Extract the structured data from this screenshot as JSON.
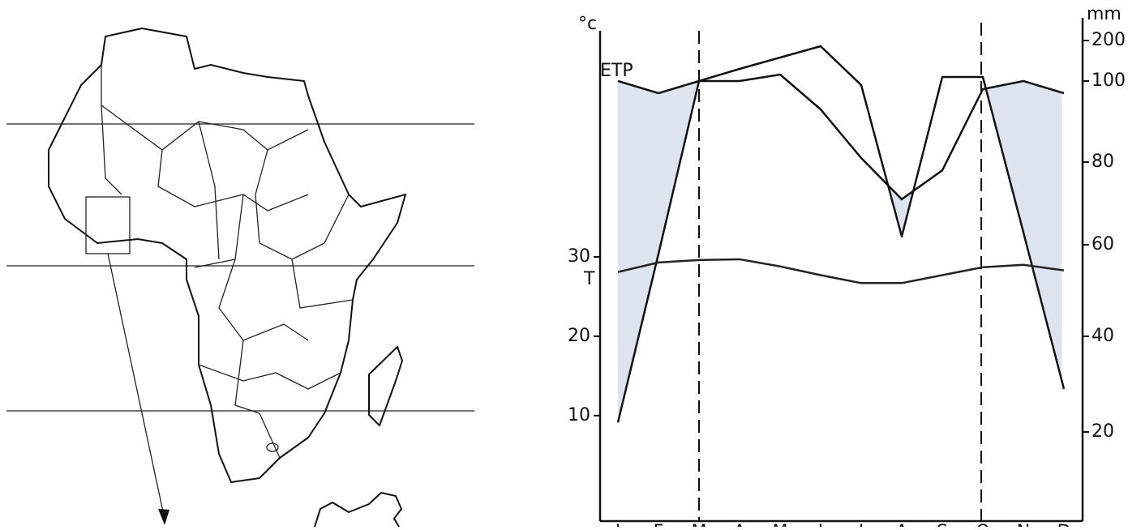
{
  "chart_data": {
    "type": "line",
    "y_label": "°c",
    "y2_label": "mm",
    "categories": [
      "J",
      "F",
      "M",
      "A",
      "M",
      "J",
      "J",
      "A",
      "S",
      "O",
      "N",
      "D"
    ],
    "series": [
      {
        "name": "ETP",
        "color": "#111111",
        "axis": "y2",
        "values": [
          100,
          97,
          100,
          100,
          116,
          93,
          81,
          71,
          78,
          98,
          100,
          97
        ]
      },
      {
        "color": "#111111",
        "axis": "y2",
        "values": [
          22,
          58,
          100,
          130,
          158,
          186,
          99,
          62,
          110,
          110,
          63,
          29
        ]
      },
      {
        "name": "T",
        "color": "#222222",
        "values": [
          28.1,
          29.3,
          29.6,
          29.7,
          28.8,
          27.7,
          26.7,
          26.7,
          27.7,
          28.7,
          29.0,
          28.3
        ]
      }
    ],
    "deficit_color": "#dde3ef",
    "ylim": [
      -3.3,
      58.5
    ],
    "yticks": [
      10,
      20,
      30
    ],
    "y2lim": [
      0,
      200
    ],
    "y2ticks": [
      20,
      40,
      60,
      80,
      100,
      200
    ]
  }
}
